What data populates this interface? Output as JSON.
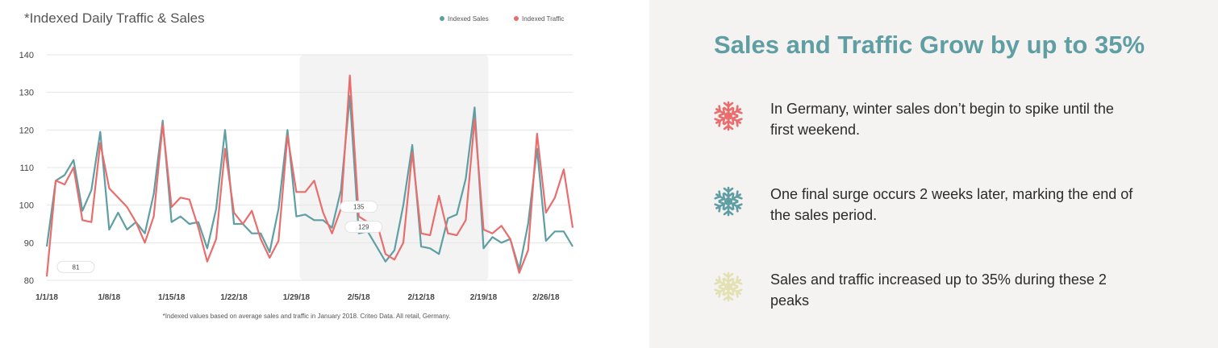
{
  "chart_data": {
    "type": "line",
    "title": "*Indexed Daily Traffic & Sales",
    "footnote": "*Indexed values based on average sales and traffic in January 2018. Criteo Data. All retail, Germany.",
    "ylim": [
      80,
      140
    ],
    "yticks": [
      80,
      90,
      100,
      110,
      120,
      130,
      140
    ],
    "xlim": [
      "2018-01-01",
      "2018-03-01"
    ],
    "xticks": [
      {
        "date": "2018-01-01",
        "label": "1/1/18"
      },
      {
        "date": "2018-01-08",
        "label": "1/8/18"
      },
      {
        "date": "2018-01-15",
        "label": "1/15/18"
      },
      {
        "date": "2018-01-22",
        "label": "1/22/18"
      },
      {
        "date": "2018-01-29",
        "label": "1/29/18"
      },
      {
        "date": "2018-02-05",
        "label": "2/5/18"
      },
      {
        "date": "2018-02-12",
        "label": "2/12/18"
      },
      {
        "date": "2018-02-19",
        "label": "2/19/18"
      },
      {
        "date": "2018-02-26",
        "label": "2/26/18"
      }
    ],
    "grid": true,
    "legend_position": "top-right",
    "highlight_range": [
      "2018-01-29",
      "2018-02-19"
    ],
    "x": [
      "2018-01-01",
      "2018-01-02",
      "2018-01-03",
      "2018-01-04",
      "2018-01-05",
      "2018-01-06",
      "2018-01-07",
      "2018-01-08",
      "2018-01-09",
      "2018-01-10",
      "2018-01-11",
      "2018-01-12",
      "2018-01-13",
      "2018-01-14",
      "2018-01-15",
      "2018-01-16",
      "2018-01-17",
      "2018-01-18",
      "2018-01-19",
      "2018-01-20",
      "2018-01-21",
      "2018-01-22",
      "2018-01-23",
      "2018-01-24",
      "2018-01-25",
      "2018-01-26",
      "2018-01-27",
      "2018-01-28",
      "2018-01-29",
      "2018-01-30",
      "2018-01-31",
      "2018-02-01",
      "2018-02-02",
      "2018-02-03",
      "2018-02-04",
      "2018-02-05",
      "2018-02-06",
      "2018-02-07",
      "2018-02-08",
      "2018-02-09",
      "2018-02-10",
      "2018-02-11",
      "2018-02-12",
      "2018-02-13",
      "2018-02-14",
      "2018-02-15",
      "2018-02-16",
      "2018-02-17",
      "2018-02-18",
      "2018-02-19",
      "2018-02-20",
      "2018-02-21",
      "2018-02-22",
      "2018-02-23",
      "2018-02-24",
      "2018-02-25",
      "2018-02-26",
      "2018-02-27",
      "2018-02-28",
      "2018-03-01"
    ],
    "series": [
      {
        "name": "Indexed Sales",
        "color": "#5f9ea3",
        "values": [
          89,
          106.5,
          108,
          112,
          98.5,
          104,
          119.5,
          93.5,
          98,
          93.5,
          95.5,
          92.5,
          103,
          122.5,
          95.5,
          97,
          95,
          95.5,
          88.5,
          99,
          120,
          95,
          95,
          92.5,
          92.5,
          87.5,
          99,
          120,
          97,
          97.5,
          96,
          96,
          94,
          104,
          129,
          92.5,
          93,
          89,
          85,
          88,
          100,
          116,
          89,
          88.5,
          87,
          96.5,
          97.5,
          107,
          126,
          88.5,
          91.5,
          90,
          91,
          83,
          95,
          115,
          90.5,
          93,
          93,
          89
        ]
      },
      {
        "name": "Indexed Traffic",
        "color": "#e96d6d",
        "values": [
          81,
          106.5,
          105.5,
          110,
          96,
          95.5,
          116.5,
          104.5,
          102,
          99.5,
          95.5,
          90,
          97,
          121.5,
          99.5,
          102,
          101.5,
          94,
          85,
          91,
          115,
          98,
          95,
          98.5,
          91,
          86,
          90.5,
          118.5,
          103.5,
          103.5,
          106.5,
          98,
          92.5,
          99,
          134.5,
          97,
          95.5,
          95.5,
          87,
          85.5,
          90,
          114,
          92.5,
          92,
          102.5,
          92.5,
          92,
          96,
          123,
          93.5,
          92.5,
          94.5,
          91,
          82,
          88,
          119,
          98,
          102,
          109.5,
          94
        ]
      }
    ],
    "callouts": [
      {
        "series": "Indexed Traffic",
        "date": "2018-02-05",
        "text": "135"
      },
      {
        "series": "Indexed Sales",
        "date": "2018-02-05",
        "text": "129"
      },
      {
        "series": "Indexed Traffic",
        "date": "2018-01-01",
        "text": "81"
      }
    ]
  },
  "info": {
    "headline": "Sales and Traffic Grow by up to 35%",
    "bullets": [
      {
        "icon": "snowflake-icon",
        "color": "#e96d6d",
        "text": "In Germany, winter sales don’t begin to spike until the first weekend."
      },
      {
        "icon": "snowflake-icon",
        "color": "#5f9ea3",
        "text": "One final surge occurs 2 weeks later, marking the end of the sales period."
      },
      {
        "icon": "snowflake-icon",
        "color": "#e3e1b1",
        "text": "Sales and traffic increased up to 35% during these 2 peaks"
      }
    ]
  }
}
